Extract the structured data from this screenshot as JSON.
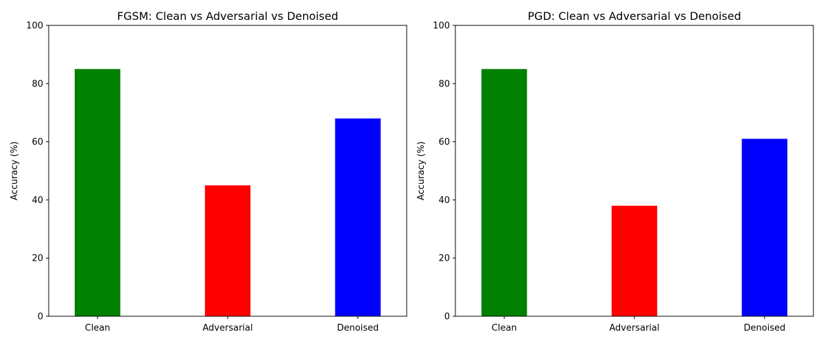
{
  "chart_data": [
    {
      "type": "bar",
      "title": "FGSM: Clean vs Adversarial vs Denoised",
      "xlabel": "",
      "ylabel": "Accuracy (%)",
      "categories": [
        "Clean",
        "Adversarial",
        "Denoised"
      ],
      "values": [
        85,
        45,
        68
      ],
      "colors": [
        "#008000",
        "#ff0000",
        "#0000ff"
      ],
      "ylim": [
        0,
        100
      ],
      "yticks": [
        0,
        20,
        40,
        60,
        80,
        100
      ],
      "grid": false
    },
    {
      "type": "bar",
      "title": "PGD: Clean vs Adversarial vs Denoised",
      "xlabel": "",
      "ylabel": "Accuracy (%)",
      "categories": [
        "Clean",
        "Adversarial",
        "Denoised"
      ],
      "values": [
        85,
        38,
        61
      ],
      "colors": [
        "#008000",
        "#ff0000",
        "#0000ff"
      ],
      "ylim": [
        0,
        100
      ],
      "yticks": [
        0,
        20,
        40,
        60,
        80,
        100
      ],
      "grid": false
    }
  ]
}
